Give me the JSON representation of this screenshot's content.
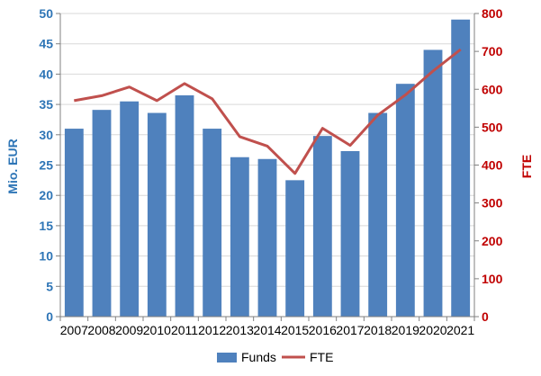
{
  "chart_data": {
    "type": "bar",
    "categories": [
      "2007",
      "2008",
      "2009",
      "2010",
      "2011",
      "2012",
      "2013",
      "2014",
      "2015",
      "2016",
      "2017",
      "2018",
      "2019",
      "2020",
      "2021"
    ],
    "series": [
      {
        "name": "Funds",
        "type": "bar",
        "axis": "left",
        "color": "#4F81BD",
        "values": [
          31.0,
          34.1,
          35.5,
          33.6,
          36.5,
          31.0,
          26.3,
          26.0,
          22.5,
          29.8,
          27.3,
          33.6,
          38.4,
          44.0,
          49.0
        ]
      },
      {
        "name": "FTE",
        "type": "line",
        "axis": "right",
        "color": "#C0504D",
        "values": [
          570,
          583,
          606,
          570,
          615,
          575,
          475,
          450,
          378,
          497,
          452,
          532,
          585,
          648,
          705
        ]
      }
    ],
    "y_left": {
      "label": "Mio. EUR",
      "ylim": [
        0,
        50
      ],
      "ticks": [
        "0",
        "5",
        "10",
        "15",
        "20",
        "25",
        "30",
        "35",
        "40",
        "45",
        "50"
      ],
      "color": "#2E75B6"
    },
    "y_right": {
      "label": "FTE",
      "ylim": [
        0,
        800
      ],
      "ticks": [
        "0",
        "100",
        "200",
        "300",
        "400",
        "500",
        "600",
        "700",
        "800"
      ],
      "color": "#C00000"
    },
    "grid": true,
    "legend_position": "bottom"
  }
}
